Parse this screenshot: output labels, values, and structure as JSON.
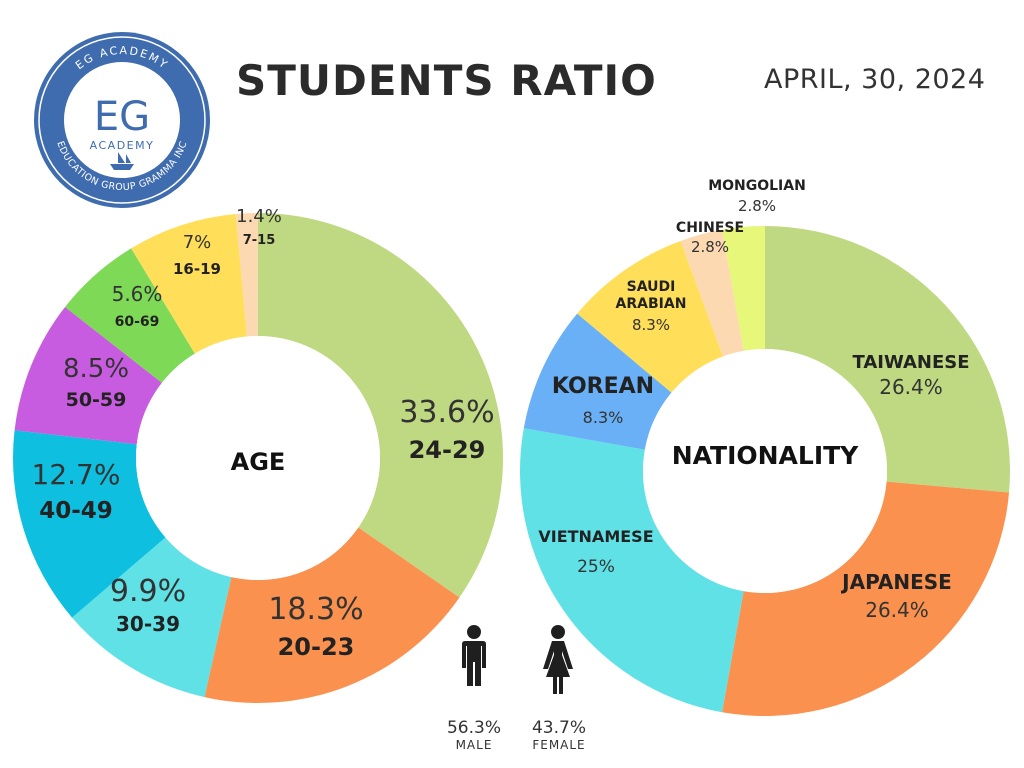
{
  "header": {
    "title": "STUDENTS RATIO",
    "date": "APRIL, 30, 2024"
  },
  "logo": {
    "ring_top": "EG ACADEMY",
    "ring_bottom": "EDUCATION GROUP GRAMMA INC",
    "monogram": "EG",
    "name": "ACADEMY"
  },
  "gender": {
    "male": {
      "percent": "56.3%",
      "label": "MALE"
    },
    "female": {
      "percent": "43.7%",
      "label": "FEMALE"
    }
  },
  "chart_data": [
    {
      "type": "pie",
      "title": "AGE",
      "categories": [
        "24-29",
        "20-23",
        "30-39",
        "40-49",
        "50-59",
        "60-69",
        "16-19",
        "7-15"
      ],
      "values": [
        33.6,
        18.3,
        9.9,
        12.7,
        8.5,
        5.6,
        7,
        1.4
      ],
      "value_labels": [
        "33.6%",
        "18.3%",
        "9.9%",
        "12.7%",
        "8.5%",
        "5.6%",
        "7%",
        "1.4%"
      ],
      "colors": [
        "#bfd982",
        "#fb914e",
        "#5fe1e6",
        "#0ebfdf",
        "#c85ce0",
        "#7ed957",
        "#ffde59",
        "#fdd9b2"
      ]
    },
    {
      "type": "pie",
      "title": "NATIONALITY",
      "categories": [
        "TAIWANESE",
        "JAPANESE",
        "VIETNAMESE",
        "KOREAN",
        "SAUDI ARABIAN",
        "CHINESE",
        "MONGOLIAN"
      ],
      "values": [
        26.4,
        26.4,
        25,
        8.3,
        8.3,
        2.8,
        2.8
      ],
      "value_labels": [
        "26.4%",
        "26.4%",
        "25%",
        "8.3%",
        "8.3%",
        "2.8%",
        "2.8%"
      ],
      "colors": [
        "#bfd982",
        "#fb914e",
        "#5fe1e6",
        "#6ab0f7",
        "#ffde59",
        "#fdd9b2",
        "#e7f77a"
      ]
    }
  ]
}
